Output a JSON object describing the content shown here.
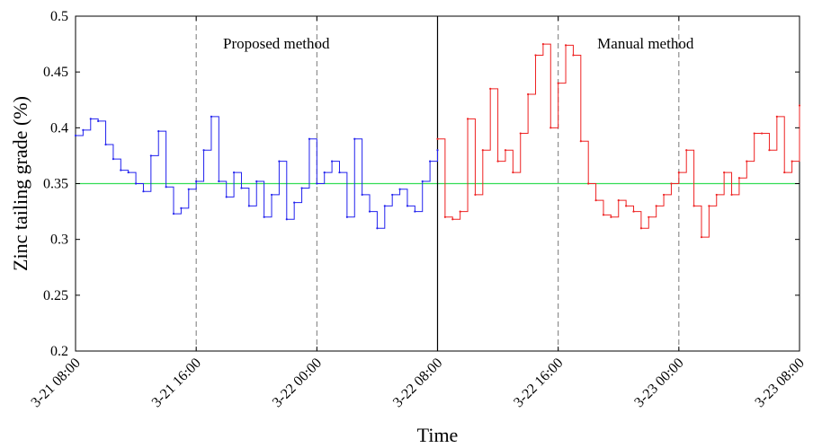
{
  "chart_data": {
    "type": "line",
    "xlabel": "Time",
    "ylabel": "Zinc tailing grade (%)",
    "ylim": [
      0.2,
      0.5
    ],
    "xlim": [
      "3-21 08:00",
      "3-23 08:00"
    ],
    "x_ticks": [
      "3-21 08:00",
      "3-21 16:00",
      "3-22 00:00",
      "3-22 08:00",
      "3-22 16:00",
      "3-23 00:00",
      "3-23 08:00"
    ],
    "y_ticks": [
      "0.2",
      "0.25",
      "0.3",
      "0.35",
      "0.4",
      "0.45",
      "0.5"
    ],
    "grid": false,
    "step": true,
    "reference_line": {
      "value": 0.35,
      "color": "#33dd55"
    },
    "divider_at": "3-22 08:00",
    "vertical_dashed_at": [
      "3-21 16:00",
      "3-22 00:00",
      "3-22 16:00",
      "3-23 00:00"
    ],
    "annotations": [
      "Proposed method",
      "Manual method"
    ],
    "series": [
      {
        "color": "#2222ee",
        "x_hours": [
          0,
          0.5,
          1,
          1.5,
          2,
          2.5,
          3,
          3.5,
          4,
          4.5,
          5,
          5.5,
          6,
          6.5,
          7,
          7.5,
          8,
          8.5,
          9,
          9.5,
          10,
          10.5,
          11,
          11.5,
          12,
          12.5,
          13,
          13.5,
          14,
          14.5,
          15,
          15.5,
          16,
          16.5,
          17,
          17.5,
          18,
          18.5,
          19,
          19.5,
          20,
          20.5,
          21,
          21.5,
          22,
          22.5,
          23,
          23.5,
          24
        ],
        "values": [
          0.393,
          0.398,
          0.408,
          0.406,
          0.385,
          0.372,
          0.362,
          0.36,
          0.35,
          0.343,
          0.375,
          0.397,
          0.347,
          0.323,
          0.328,
          0.345,
          0.352,
          0.38,
          0.41,
          0.352,
          0.338,
          0.36,
          0.346,
          0.33,
          0.352,
          0.32,
          0.34,
          0.37,
          0.318,
          0.333,
          0.346,
          0.39,
          0.35,
          0.36,
          0.37,
          0.36,
          0.32,
          0.39,
          0.34,
          0.325,
          0.31,
          0.33,
          0.34,
          0.345,
          0.33,
          0.325,
          0.352,
          0.37,
          0.38
        ]
      },
      {
        "color": "#ee2222",
        "x_hours": [
          24,
          24.5,
          25,
          25.5,
          26,
          26.5,
          27,
          27.5,
          28,
          28.5,
          29,
          29.5,
          30,
          30.5,
          31,
          31.5,
          32,
          32.5,
          33,
          33.5,
          34,
          34.5,
          35,
          35.5,
          36,
          36.5,
          37,
          37.5,
          38,
          38.5,
          39,
          39.5,
          40,
          40.5,
          41,
          41.5,
          42,
          42.5,
          43,
          43.5,
          44,
          44.5,
          45,
          45.5,
          46,
          46.5,
          47,
          47.5,
          48
        ],
        "values": [
          0.39,
          0.32,
          0.318,
          0.325,
          0.408,
          0.34,
          0.38,
          0.435,
          0.37,
          0.38,
          0.36,
          0.395,
          0.43,
          0.465,
          0.475,
          0.4,
          0.44,
          0.474,
          0.465,
          0.388,
          0.35,
          0.335,
          0.322,
          0.32,
          0.335,
          0.33,
          0.325,
          0.31,
          0.32,
          0.33,
          0.34,
          0.35,
          0.36,
          0.38,
          0.33,
          0.302,
          0.33,
          0.34,
          0.36,
          0.34,
          0.355,
          0.37,
          0.395,
          0.395,
          0.38,
          0.41,
          0.36,
          0.37,
          0.42
        ]
      }
    ]
  }
}
